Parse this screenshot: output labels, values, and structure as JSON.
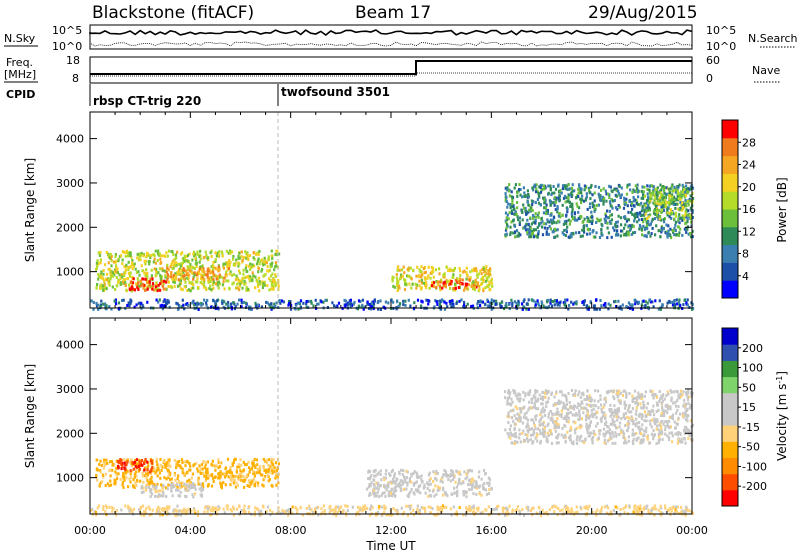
{
  "header": {
    "station": "Blackstone (fitACF)",
    "beam": "Beam 17",
    "date": "29/Aug/2015"
  },
  "top_panels": {
    "noise": {
      "left_label": "N.Sky",
      "right_label": "N.Search",
      "left_ticks": [
        "10^5",
        "10^0"
      ],
      "right_ticks": [
        "10^5",
        "10^0"
      ]
    },
    "freq": {
      "left_label_line1": "Freq.",
      "left_label_line2": "[MHz]",
      "right_label": "Nave",
      "left_ticks": [
        "18",
        "8"
      ],
      "right_ticks": [
        "60",
        "0"
      ]
    },
    "cpid": {
      "label": "CPID",
      "segments": [
        {
          "label": "rbsp CT-trig 220",
          "start_hour": 0
        },
        {
          "label": "twofsound 3501",
          "start_hour": 7.6
        }
      ]
    }
  },
  "chart_data": [
    {
      "type": "heatmap",
      "quantity": "Power",
      "ylabel": "Slant Range [km]",
      "xlabel": "",
      "xlim": [
        0,
        24
      ],
      "ylim": [
        180,
        4600
      ],
      "y_ticks": [
        1000,
        2000,
        3000,
        4000
      ],
      "colorbar": {
        "label": "Power [dB]",
        "ticks": [
          "4",
          "8",
          "12",
          "16",
          "20",
          "24",
          "28"
        ],
        "range": [
          0,
          32
        ],
        "colors": [
          "#0000ff",
          "#1b4fa8",
          "#3a7fb0",
          "#2e8b57",
          "#6bbf3a",
          "#b6dc2a",
          "#f3d021",
          "#f5a623",
          "#f07b1d",
          "#ff0000"
        ]
      },
      "regions": [
        {
          "t": [
            0.2,
            7.5
          ],
          "r": [
            600,
            1500
          ],
          "level": 18
        },
        {
          "t": [
            1.5,
            3.0
          ],
          "r": [
            600,
            900
          ],
          "level": 28
        },
        {
          "t": [
            3.0,
            5.5
          ],
          "r": [
            850,
            1150
          ],
          "level": 24
        },
        {
          "t": [
            12.0,
            16.0
          ],
          "r": [
            600,
            1150
          ],
          "level": 20
        },
        {
          "t": [
            13.5,
            15.5
          ],
          "r": [
            650,
            850
          ],
          "level": 28
        },
        {
          "t": [
            16.5,
            24.0
          ],
          "r": [
            1800,
            3000
          ],
          "level": 10
        },
        {
          "t": [
            22.0,
            24.0
          ],
          "r": [
            2200,
            2900
          ],
          "level": 16
        },
        {
          "t": [
            0.0,
            24.0
          ],
          "r": [
            180,
            400
          ],
          "level": 6
        }
      ]
    },
    {
      "type": "heatmap",
      "quantity": "Velocity",
      "ylabel": "Slant Range [km]",
      "xlabel": "Time UT",
      "xlim": [
        0,
        24
      ],
      "ylim": [
        180,
        4600
      ],
      "x_ticks": [
        "00:00",
        "04:00",
        "08:00",
        "12:00",
        "16:00",
        "20:00",
        "00:00"
      ],
      "y_ticks": [
        1000,
        2000,
        3000,
        4000
      ],
      "colorbar": {
        "label": "Velocity [m s^-1]",
        "ticks": [
          "200",
          "100",
          "50",
          "15",
          "-15",
          "-50",
          "-100",
          "-200"
        ],
        "range": [
          -250,
          250
        ],
        "colors": [
          "#ff0000",
          "#ff4d00",
          "#ff8c00",
          "#ffb000",
          "#ffd27a",
          "#c8c8c8",
          "#c8c8c8",
          "#7fd36b",
          "#3a9a3a",
          "#3050b0",
          "#0000cc"
        ]
      },
      "regions": [
        {
          "t": [
            0.2,
            7.5
          ],
          "r": [
            800,
            1450
          ],
          "level": -80
        },
        {
          "t": [
            1.0,
            2.5
          ],
          "r": [
            1150,
            1450
          ],
          "level": -200
        },
        {
          "t": [
            2.0,
            4.5
          ],
          "r": [
            600,
            900
          ],
          "level": 0
        },
        {
          "t": [
            11.0,
            16.0
          ],
          "r": [
            600,
            1200
          ],
          "level": 0
        },
        {
          "t": [
            16.5,
            24.0
          ],
          "r": [
            1800,
            3000
          ],
          "level": 0
        },
        {
          "t": [
            0.0,
            24.0
          ],
          "r": [
            180,
            400
          ],
          "level": -40
        }
      ]
    }
  ]
}
